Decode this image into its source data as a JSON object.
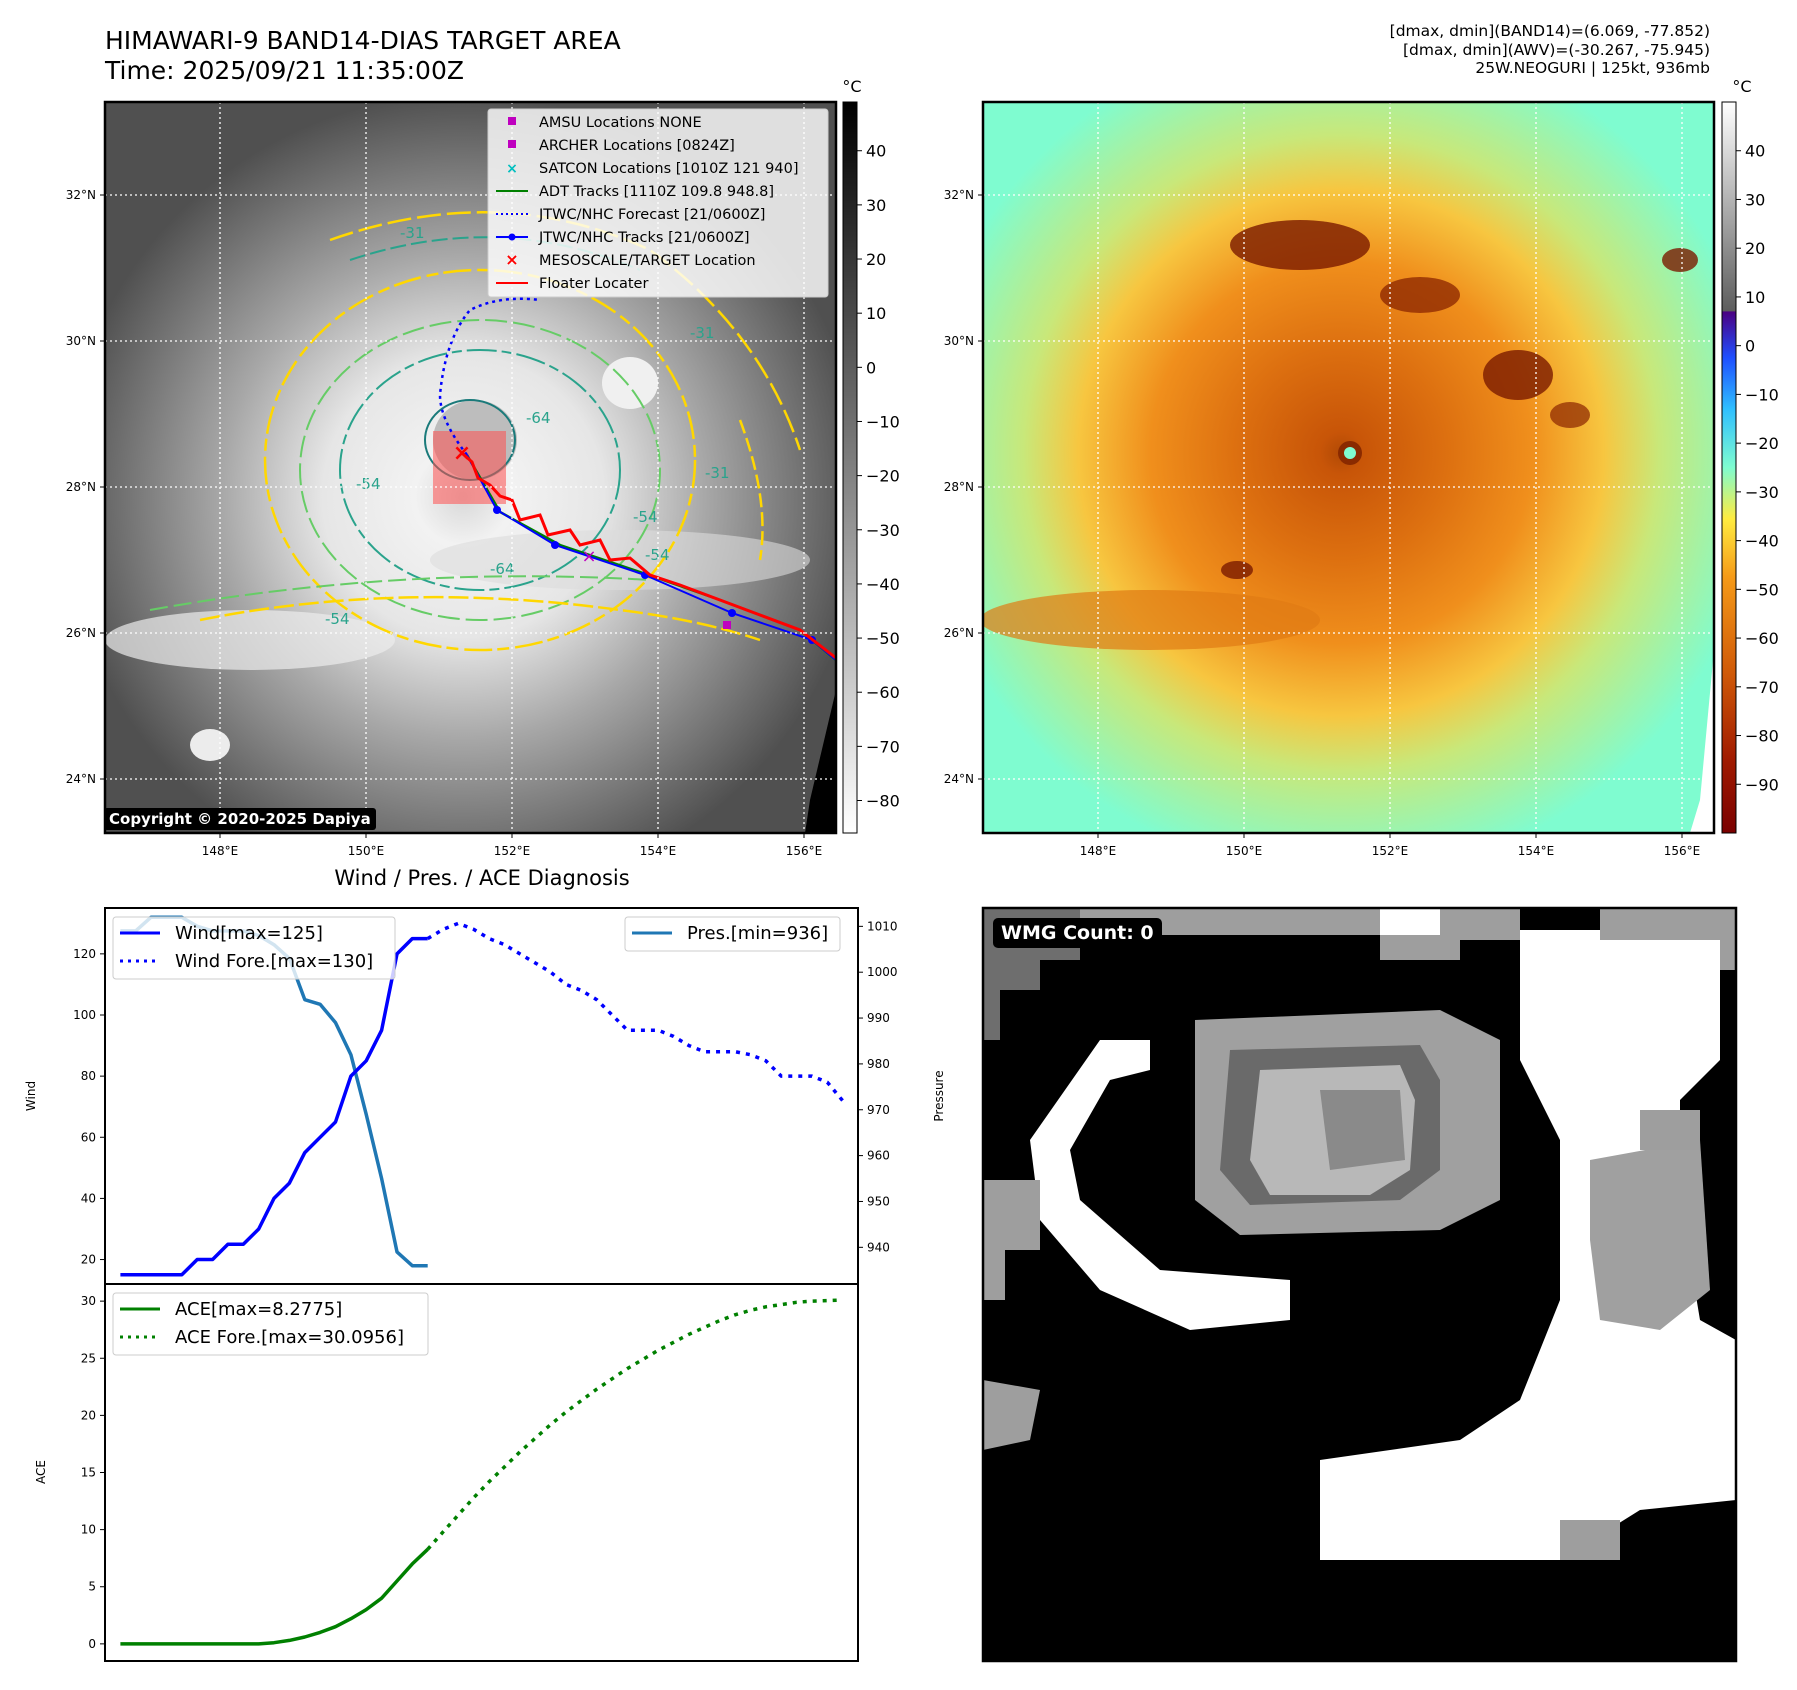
{
  "header": {
    "title_line1": "HIMAWARI-9 BAND14-DIAS TARGET AREA",
    "title_line2": "Time: 2025/09/21 11:35:00Z",
    "info_line1": "[dmax, dmin](BAND14)=(6.069, -77.852)",
    "info_line2": "[dmax, dmin](AWV)=(-30.267, -75.945)",
    "info_line3": "25W.NEOGURI | 125kt, 936mb"
  },
  "map_axes": {
    "lat_labels": [
      "32°N",
      "30°N",
      "28°N",
      "26°N",
      "24°N"
    ],
    "lon_labels": [
      "148°E",
      "150°E",
      "152°E",
      "154°E",
      "156°E"
    ]
  },
  "ir_panel": {
    "copyright": "Copyright © 2020-2025 Dapiya",
    "colorbar_unit": "°C",
    "colorbar_ticks": [
      "40",
      "30",
      "20",
      "10",
      "0",
      "−10",
      "−20",
      "−30",
      "−40",
      "−50",
      "−60",
      "−70",
      "−80"
    ],
    "contour_labels": [
      "-31",
      "-54",
      "-64",
      "-54",
      "-31",
      "-54",
      "-64",
      "-54",
      "-31"
    ],
    "legend": [
      {
        "label": "AMSU Locations NONE",
        "marker": "square",
        "color": "#bf00bf"
      },
      {
        "label": "ARCHER Locations [0824Z]",
        "marker": "square",
        "color": "#bf00bf"
      },
      {
        "label": "SATCON Locations [1010Z 121 940]",
        "marker": "x",
        "color": "#00bfbf"
      },
      {
        "label": "ADT Tracks [1110Z 109.8 948.8]",
        "marker": "line",
        "color": "#008000"
      },
      {
        "label": "JTWC/NHC Forecast [21/0600Z]",
        "marker": "dotted",
        "color": "#0000ff"
      },
      {
        "label": "JTWC/NHC Tracks [21/0600Z]",
        "marker": "line-dot",
        "color": "#0000ff"
      },
      {
        "label": "MESOSCALE/TARGET Location",
        "marker": "x",
        "color": "#ff0000"
      },
      {
        "label": "Floater Locater",
        "marker": "line",
        "color": "#ff0000"
      }
    ]
  },
  "awv_panel": {
    "colorbar_unit": "°C",
    "colorbar_ticks": [
      "40",
      "30",
      "20",
      "10",
      "0",
      "−10",
      "−20",
      "−30",
      "−40",
      "−50",
      "−60",
      "−70",
      "−80",
      "−90"
    ]
  },
  "wmg_panel": {
    "label": "WMG Count: 0"
  },
  "diagnosis": {
    "title": "Wind / Pres. / ACE Diagnosis"
  },
  "chart_data": [
    {
      "type": "line",
      "title": "Wind / Pres. / ACE Diagnosis",
      "ylabel": "Wind",
      "y2label": "Pressure",
      "ylim": [
        12,
        135
      ],
      "y2lim": [
        932,
        1014
      ],
      "yticks": [
        20,
        40,
        60,
        80,
        100,
        120
      ],
      "y2ticks": [
        940,
        950,
        960,
        970,
        980,
        990,
        1000,
        1010
      ],
      "xlim": [
        0,
        49
      ],
      "series": [
        {
          "name": "Wind[max=125]",
          "axis": "left",
          "color": "#0000ff",
          "style": "solid",
          "x": [
            1,
            2,
            3,
            4,
            5,
            6,
            7,
            8,
            9,
            10,
            11,
            12,
            13,
            14,
            15,
            16,
            17,
            18,
            19,
            20,
            21
          ],
          "values": [
            15,
            15,
            15,
            15,
            15,
            20,
            20,
            25,
            25,
            30,
            40,
            45,
            55,
            60,
            65,
            80,
            85,
            95,
            120,
            125,
            125
          ]
        },
        {
          "name": "Wind Fore.[max=130]",
          "axis": "left",
          "color": "#0000ff",
          "style": "dotted",
          "x": [
            21,
            22,
            23,
            24,
            25,
            26,
            27,
            28,
            29,
            30,
            31,
            32,
            33,
            34,
            35,
            36,
            37,
            38,
            39,
            40,
            41,
            42,
            43,
            44,
            45,
            46,
            47,
            48
          ],
          "values": [
            125,
            128,
            130,
            128,
            125,
            123,
            120,
            117,
            114,
            110,
            108,
            105,
            100,
            95,
            95,
            95,
            93,
            90,
            88,
            88,
            88,
            87,
            85,
            80,
            80,
            80,
            78,
            72
          ]
        },
        {
          "name": "Pres.[min=936]",
          "axis": "right",
          "color": "#1f77b4",
          "style": "solid",
          "x": [
            1,
            2,
            3,
            4,
            5,
            6,
            7,
            8,
            9,
            10,
            11,
            12,
            13,
            14,
            15,
            16,
            17,
            18,
            19,
            20,
            21
          ],
          "values": [
            1009,
            1009,
            1012,
            1012,
            1012,
            1010,
            1009,
            1009,
            1009,
            1008,
            1006,
            1003,
            994,
            993,
            989,
            982,
            969,
            955,
            939,
            936,
            936
          ]
        }
      ]
    },
    {
      "type": "line",
      "ylabel": "ACE",
      "ylim": [
        -1.5,
        31.5
      ],
      "yticks": [
        0,
        5,
        10,
        15,
        20,
        25,
        30
      ],
      "xlim": [
        0,
        49
      ],
      "series": [
        {
          "name": "ACE[max=8.2775]",
          "color": "#008000",
          "style": "solid",
          "x": [
            1,
            2,
            3,
            4,
            5,
            6,
            7,
            8,
            9,
            10,
            11,
            12,
            13,
            14,
            15,
            16,
            17,
            18,
            19,
            20,
            21
          ],
          "values": [
            0,
            0,
            0,
            0,
            0,
            0,
            0,
            0,
            0,
            0,
            0.1,
            0.3,
            0.6,
            1.0,
            1.5,
            2.2,
            3.0,
            4.0,
            5.5,
            7.0,
            8.2775
          ]
        },
        {
          "name": "ACE Fore.[max=30.0956]",
          "color": "#008000",
          "style": "dotted",
          "x": [
            21,
            22,
            23,
            24,
            25,
            26,
            27,
            28,
            29,
            30,
            31,
            32,
            33,
            34,
            35,
            36,
            37,
            38,
            39,
            40,
            41,
            42,
            43,
            44,
            45,
            46,
            47,
            48
          ],
          "values": [
            8.2775,
            9.8,
            11.3,
            12.8,
            14.2,
            15.5,
            16.8,
            18,
            19.2,
            20.3,
            21.3,
            22.3,
            23.2,
            24.1,
            24.9,
            25.7,
            26.4,
            27.1,
            27.7,
            28.3,
            28.8,
            29.2,
            29.5,
            29.7,
            29.9,
            30,
            30.05,
            30.0956
          ]
        }
      ]
    }
  ]
}
